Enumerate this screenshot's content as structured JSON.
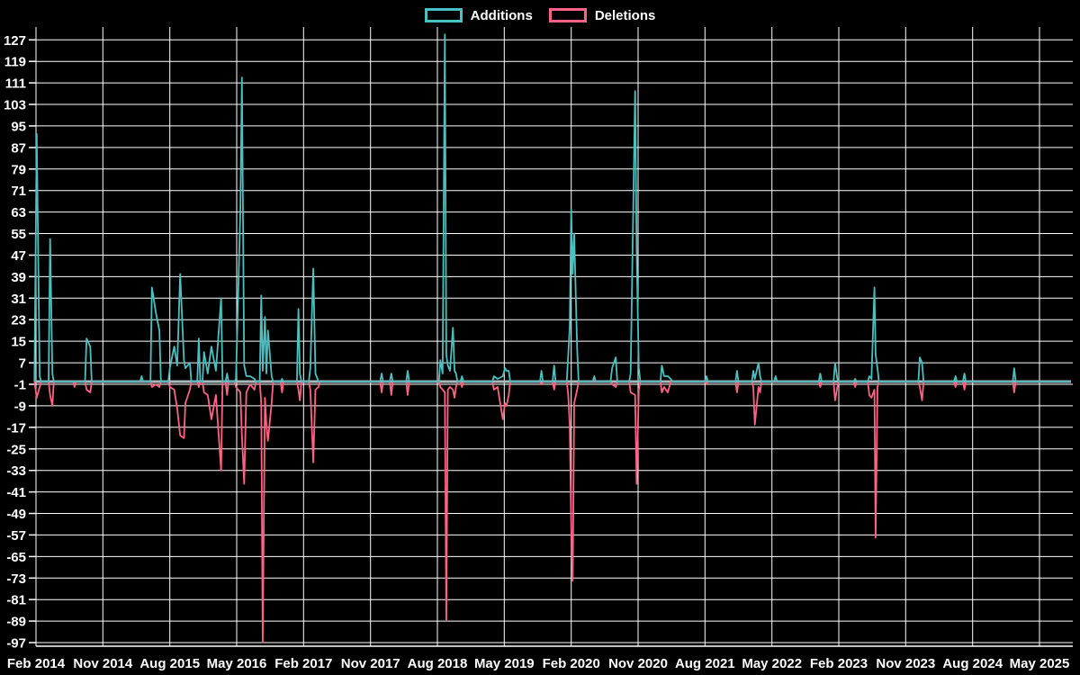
{
  "legend": [
    {
      "label": "Additions",
      "color": "#4bc0c0"
    },
    {
      "label": "Deletions",
      "color": "#ff6384"
    }
  ],
  "colors": {
    "background": "#000000",
    "grid": "#ffffff",
    "text": "#ffffff",
    "additions": "#4bc0c0",
    "deletions": "#ff6384",
    "baseline": "#a9babd"
  },
  "chart_data": {
    "type": "line",
    "title": "",
    "legend_position": "top",
    "grid": true,
    "t_unit": "months since Feb 2014",
    "t_end": 139.2,
    "x_axis": {
      "labels": [
        "Feb 2014",
        "Nov 2014",
        "Aug 2015",
        "May 2016",
        "Feb 2017",
        "Nov 2017",
        "Aug 2018",
        "May 2019",
        "Feb 2020",
        "Nov 2020",
        "Aug 2021",
        "May 2022",
        "Feb 2023",
        "Nov 2023",
        "Aug 2024",
        "May 2025"
      ],
      "interval_months": 9
    },
    "y_axis": {
      "ticks": [
        127,
        119,
        111,
        103,
        95,
        87,
        79,
        71,
        63,
        55,
        47,
        39,
        31,
        23,
        15,
        7,
        -1,
        -9,
        -17,
        -25,
        -33,
        -41,
        -49,
        -57,
        -65,
        -73,
        -81,
        -89,
        -97
      ],
      "min": -97,
      "max": 127,
      "step": 8
    },
    "series": [
      {
        "name": "Additions",
        "value_key": "a",
        "color": "#4bc0c0"
      },
      {
        "name": "Deletions",
        "value_key": "d",
        "color": "#ff6384"
      }
    ],
    "points": [
      {
        "t": 0.1,
        "a": 92,
        "d": -6
      },
      {
        "t": 0.5,
        "a": 2,
        "d": -2
      },
      {
        "t": 1.9,
        "a": 53,
        "d": -5
      },
      {
        "t": 2.2,
        "a": 3,
        "d": -9
      },
      {
        "t": 5.2,
        "a": 0,
        "d": -2
      },
      {
        "t": 6.8,
        "a": 16,
        "d": -3
      },
      {
        "t": 7.3,
        "a": 13,
        "d": -4
      },
      {
        "t": 14.2,
        "a": 2,
        "d": 0
      },
      {
        "t": 15.6,
        "a": 35,
        "d": -2
      },
      {
        "t": 16.1,
        "a": 26,
        "d": -1
      },
      {
        "t": 16.6,
        "a": 19,
        "d": -2
      },
      {
        "t": 18.0,
        "a": 5,
        "d": -2
      },
      {
        "t": 18.6,
        "a": 13,
        "d": -3
      },
      {
        "t": 19.0,
        "a": 6,
        "d": -10
      },
      {
        "t": 19.4,
        "a": 40,
        "d": -20
      },
      {
        "t": 19.9,
        "a": 8,
        "d": -21
      },
      {
        "t": 20.1,
        "a": 5,
        "d": -8
      },
      {
        "t": 20.7,
        "a": 7,
        "d": -3
      },
      {
        "t": 21.9,
        "a": 16,
        "d": -2
      },
      {
        "t": 22.6,
        "a": 11,
        "d": -4
      },
      {
        "t": 23.1,
        "a": 3,
        "d": -5
      },
      {
        "t": 23.6,
        "a": 13,
        "d": -14
      },
      {
        "t": 24.2,
        "a": 4,
        "d": -5
      },
      {
        "t": 24.9,
        "a": 31,
        "d": -33
      },
      {
        "t": 25.7,
        "a": 3,
        "d": -5
      },
      {
        "t": 26.9,
        "a": 1,
        "d": -2
      },
      {
        "t": 27.5,
        "a": 64,
        "d": -4
      },
      {
        "t": 27.7,
        "a": 113,
        "d": -20
      },
      {
        "t": 28.0,
        "a": 6,
        "d": -38
      },
      {
        "t": 28.3,
        "a": 2,
        "d": -4
      },
      {
        "t": 28.8,
        "a": 2,
        "d": -1
      },
      {
        "t": 29.4,
        "a": 1,
        "d": -3
      },
      {
        "t": 30.3,
        "a": 32,
        "d": -8
      },
      {
        "t": 30.5,
        "a": 4,
        "d": -97
      },
      {
        "t": 30.8,
        "a": 24,
        "d": -6
      },
      {
        "t": 31.0,
        "a": 3,
        "d": -16
      },
      {
        "t": 31.2,
        "a": 19,
        "d": -22
      },
      {
        "t": 31.7,
        "a": 2,
        "d": -8
      },
      {
        "t": 33.1,
        "a": 1,
        "d": -4
      },
      {
        "t": 35.3,
        "a": 27,
        "d": -3
      },
      {
        "t": 35.5,
        "a": 3,
        "d": -7
      },
      {
        "t": 36.9,
        "a": 5,
        "d": -3
      },
      {
        "t": 37.3,
        "a": 42,
        "d": -30
      },
      {
        "t": 37.6,
        "a": 3,
        "d": -3
      },
      {
        "t": 38.0,
        "a": 0,
        "d": -2
      },
      {
        "t": 46.5,
        "a": 3,
        "d": -4
      },
      {
        "t": 47.8,
        "a": 3,
        "d": -5
      },
      {
        "t": 50.0,
        "a": 4,
        "d": -5
      },
      {
        "t": 54.4,
        "a": 8,
        "d": -2
      },
      {
        "t": 54.7,
        "a": 3,
        "d": -3
      },
      {
        "t": 55.0,
        "a": 129,
        "d": -4
      },
      {
        "t": 55.2,
        "a": 10,
        "d": -89
      },
      {
        "t": 55.4,
        "a": 6,
        "d": -3
      },
      {
        "t": 55.7,
        "a": 4,
        "d": -2
      },
      {
        "t": 56.1,
        "a": 20,
        "d": -3
      },
      {
        "t": 56.3,
        "a": 4,
        "d": -6
      },
      {
        "t": 56.5,
        "a": 3,
        "d": -2
      },
      {
        "t": 57.3,
        "a": 2,
        "d": -2
      },
      {
        "t": 61.6,
        "a": 2,
        "d": -3
      },
      {
        "t": 62.1,
        "a": 1,
        "d": -2
      },
      {
        "t": 62.8,
        "a": 2,
        "d": -14
      },
      {
        "t": 63.1,
        "a": 5,
        "d": -8
      },
      {
        "t": 63.3,
        "a": 4,
        "d": -9
      },
      {
        "t": 63.6,
        "a": 4,
        "d": -5
      },
      {
        "t": 68.0,
        "a": 4,
        "d": -1
      },
      {
        "t": 69.7,
        "a": 6,
        "d": -3
      },
      {
        "t": 71.6,
        "a": 10,
        "d": -5
      },
      {
        "t": 71.8,
        "a": 20,
        "d": -16
      },
      {
        "t": 72.0,
        "a": 64,
        "d": -54
      },
      {
        "t": 72.2,
        "a": 40,
        "d": -74
      },
      {
        "t": 72.4,
        "a": 55,
        "d": -8
      },
      {
        "t": 72.8,
        "a": 12,
        "d": -3
      },
      {
        "t": 75.1,
        "a": 2,
        "d": 0
      },
      {
        "t": 77.5,
        "a": 5,
        "d": -1
      },
      {
        "t": 78.0,
        "a": 9,
        "d": -2
      },
      {
        "t": 80.0,
        "a": 3,
        "d": -4
      },
      {
        "t": 80.6,
        "a": 108,
        "d": -5
      },
      {
        "t": 80.8,
        "a": 48,
        "d": -38
      },
      {
        "t": 81.1,
        "a": 5,
        "d": -3
      },
      {
        "t": 84.2,
        "a": 6,
        "d": -4
      },
      {
        "t": 84.5,
        "a": 2,
        "d": -2
      },
      {
        "t": 85.0,
        "a": 2,
        "d": -4
      },
      {
        "t": 85.4,
        "a": 1,
        "d": 0
      },
      {
        "t": 90.2,
        "a": 2,
        "d": -1
      },
      {
        "t": 94.3,
        "a": 4,
        "d": -4
      },
      {
        "t": 96.5,
        "a": 4,
        "d": -2
      },
      {
        "t": 96.7,
        "a": 1,
        "d": -16
      },
      {
        "t": 97.2,
        "a": 7,
        "d": -2
      },
      {
        "t": 97.4,
        "a": 2,
        "d": -4
      },
      {
        "t": 99.5,
        "a": 2,
        "d": 0
      },
      {
        "t": 105.5,
        "a": 3,
        "d": -2
      },
      {
        "t": 107.5,
        "a": 7,
        "d": -7
      },
      {
        "t": 107.8,
        "a": 1,
        "d": -2
      },
      {
        "t": 110.2,
        "a": 1,
        "d": -2
      },
      {
        "t": 112.1,
        "a": 2,
        "d": -5
      },
      {
        "t": 112.4,
        "a": 1,
        "d": -6
      },
      {
        "t": 112.8,
        "a": 35,
        "d": -3
      },
      {
        "t": 112.95,
        "a": 10,
        "d": -58
      },
      {
        "t": 113.2,
        "a": 5,
        "d": -2
      },
      {
        "t": 118.9,
        "a": 9,
        "d": -2
      },
      {
        "t": 119.2,
        "a": 7,
        "d": -7
      },
      {
        "t": 123.7,
        "a": 2,
        "d": -2
      },
      {
        "t": 124.9,
        "a": 3,
        "d": -3
      },
      {
        "t": 131.6,
        "a": 5,
        "d": -4
      }
    ]
  }
}
